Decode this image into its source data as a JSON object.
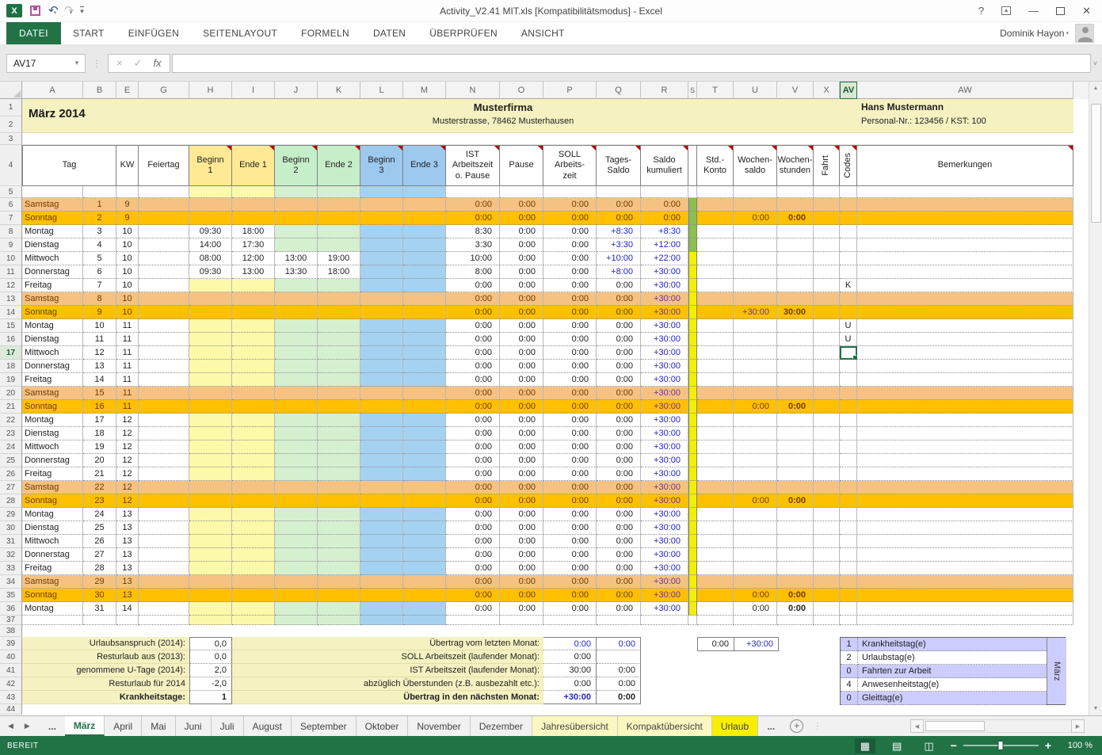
{
  "title_bar": {
    "title": "Activity_V2.41 MIT.xls  [Kompatibilitätsmodus] - Excel",
    "help": "?"
  },
  "ribbon": {
    "file_tab": "DATEI",
    "tabs": [
      "START",
      "EINFÜGEN",
      "SEITENLAYOUT",
      "FORMELN",
      "DATEN",
      "ÜBERPRÜFEN",
      "ANSICHT"
    ],
    "user_name": "Dominik Hayon"
  },
  "formula_bar": {
    "name_box": "AV17",
    "fx_label": "fx",
    "formula_value": ""
  },
  "columns": [
    "A",
    "B",
    "E",
    "G",
    "H",
    "I",
    "J",
    "K",
    "L",
    "M",
    "N",
    "O",
    "P",
    "Q",
    "R",
    "S",
    "T",
    "U",
    "V",
    "X",
    "AV",
    "AW"
  ],
  "selection": {
    "cell": "AV17",
    "column": "AV",
    "row": 17
  },
  "sheet": {
    "month_title": "März 2014",
    "company": "Musterfirma",
    "company_address": "Musterstrasse, 78462 Musterhausen",
    "employee_name": "Hans Mustermann",
    "employee_id": "Personal-Nr.: 123456 / KST: 100",
    "header": {
      "tag": "Tag",
      "kw": "KW",
      "feiertag": "Feiertag",
      "beginn1": "Beginn\n1",
      "ende1": "Ende 1",
      "beginn2": "Beginn\n2",
      "ende2": "Ende 2",
      "beginn3": "Beginn\n3",
      "ende3": "Ende 3",
      "ist": "IST\nArbeitszeit\no. Pause",
      "pause": "Pause",
      "soll": "SOLL\nArbeits-\nzeit",
      "tages": "Tages-\nSaldo",
      "saldo": "Saldo\nkumuliert",
      "std": "Std.-\nKonto",
      "wochensaldo": "Wochen-\nsaldo",
      "wochenstunden": "Wochen-\nstunden",
      "fahrt": "Fahrt",
      "codes": "Codes",
      "bemerkungen": "Bemerkungen"
    },
    "rows": [
      {
        "nr": 6,
        "tag": "Samstag",
        "d": "1",
        "kw": "9",
        "w": "sat",
        "n": "0:00",
        "o": "0:00",
        "p": "0:00",
        "q": "0:00",
        "r": "0:00"
      },
      {
        "nr": 7,
        "tag": "Sonntag",
        "d": "2",
        "kw": "9",
        "w": "sun",
        "n": "0:00",
        "o": "0:00",
        "p": "0:00",
        "q": "0:00",
        "r": "0:00",
        "u": "0:00",
        "v": "0:00"
      },
      {
        "nr": 8,
        "tag": "Montag",
        "d": "3",
        "kw": "10",
        "h": "09:30",
        "i": "18:00",
        "n": "8:30",
        "o": "0:00",
        "p": "0:00",
        "q": "+8:30",
        "r": "+8:30"
      },
      {
        "nr": 9,
        "tag": "Dienstag",
        "d": "4",
        "kw": "10",
        "h": "14:00",
        "i": "17:30",
        "n": "3:30",
        "o": "0:00",
        "p": "0:00",
        "q": "+3:30",
        "r": "+12:00"
      },
      {
        "nr": 10,
        "tag": "Mittwoch",
        "d": "5",
        "kw": "10",
        "h": "08:00",
        "i": "12:00",
        "j": "13:00",
        "k": "19:00",
        "n": "10:00",
        "o": "0:00",
        "p": "0:00",
        "q": "+10:00",
        "r": "+22:00"
      },
      {
        "nr": 11,
        "tag": "Donnerstag",
        "d": "6",
        "kw": "10",
        "h": "09:30",
        "i": "13:00",
        "j": "13:30",
        "k": "18:00",
        "n": "8:00",
        "o": "0:00",
        "p": "0:00",
        "q": "+8:00",
        "r": "+30:00"
      },
      {
        "nr": 12,
        "tag": "Freitag",
        "d": "7",
        "kw": "10",
        "n": "0:00",
        "o": "0:00",
        "p": "0:00",
        "q": "0:00",
        "r": "+30:00",
        "code": "K"
      },
      {
        "nr": 13,
        "tag": "Samstag",
        "d": "8",
        "kw": "10",
        "w": "sat",
        "n": "0:00",
        "o": "0:00",
        "p": "0:00",
        "q": "0:00",
        "r": "+30:00"
      },
      {
        "nr": 14,
        "tag": "Sonntag",
        "d": "9",
        "kw": "10",
        "w": "sun",
        "n": "0:00",
        "o": "0:00",
        "p": "0:00",
        "q": "0:00",
        "r": "+30:00",
        "u": "+30:00",
        "v": "30:00"
      },
      {
        "nr": 15,
        "tag": "Montag",
        "d": "10",
        "kw": "11",
        "n": "0:00",
        "o": "0:00",
        "p": "0:00",
        "q": "0:00",
        "r": "+30:00",
        "code": "U"
      },
      {
        "nr": 16,
        "tag": "Dienstag",
        "d": "11",
        "kw": "11",
        "n": "0:00",
        "o": "0:00",
        "p": "0:00",
        "q": "0:00",
        "r": "+30:00",
        "code": "U"
      },
      {
        "nr": 17,
        "tag": "Mittwoch",
        "d": "12",
        "kw": "11",
        "n": "0:00",
        "o": "0:00",
        "p": "0:00",
        "q": "0:00",
        "r": "+30:00"
      },
      {
        "nr": 18,
        "tag": "Donnerstag",
        "d": "13",
        "kw": "11",
        "n": "0:00",
        "o": "0:00",
        "p": "0:00",
        "q": "0:00",
        "r": "+30:00"
      },
      {
        "nr": 19,
        "tag": "Freitag",
        "d": "14",
        "kw": "11",
        "n": "0:00",
        "o": "0:00",
        "p": "0:00",
        "q": "0:00",
        "r": "+30:00"
      },
      {
        "nr": 20,
        "tag": "Samstag",
        "d": "15",
        "kw": "11",
        "w": "sat",
        "n": "0:00",
        "o": "0:00",
        "p": "0:00",
        "q": "0:00",
        "r": "+30:00"
      },
      {
        "nr": 21,
        "tag": "Sonntag",
        "d": "16",
        "kw": "11",
        "w": "sun",
        "n": "0:00",
        "o": "0:00",
        "p": "0:00",
        "q": "0:00",
        "r": "+30:00",
        "u": "0:00",
        "v": "0:00"
      },
      {
        "nr": 22,
        "tag": "Montag",
        "d": "17",
        "kw": "12",
        "n": "0:00",
        "o": "0:00",
        "p": "0:00",
        "q": "0:00",
        "r": "+30:00"
      },
      {
        "nr": 23,
        "tag": "Dienstag",
        "d": "18",
        "kw": "12",
        "n": "0:00",
        "o": "0:00",
        "p": "0:00",
        "q": "0:00",
        "r": "+30:00"
      },
      {
        "nr": 24,
        "tag": "Mittwoch",
        "d": "19",
        "kw": "12",
        "n": "0:00",
        "o": "0:00",
        "p": "0:00",
        "q": "0:00",
        "r": "+30:00"
      },
      {
        "nr": 25,
        "tag": "Donnerstag",
        "d": "20",
        "kw": "12",
        "n": "0:00",
        "o": "0:00",
        "p": "0:00",
        "q": "0:00",
        "r": "+30:00"
      },
      {
        "nr": 26,
        "tag": "Freitag",
        "d": "21",
        "kw": "12",
        "n": "0:00",
        "o": "0:00",
        "p": "0:00",
        "q": "0:00",
        "r": "+30:00"
      },
      {
        "nr": 27,
        "tag": "Samstag",
        "d": "22",
        "kw": "12",
        "w": "sat",
        "n": "0:00",
        "o": "0:00",
        "p": "0:00",
        "q": "0:00",
        "r": "+30:00"
      },
      {
        "nr": 28,
        "tag": "Sonntag",
        "d": "23",
        "kw": "12",
        "w": "sun",
        "n": "0:00",
        "o": "0:00",
        "p": "0:00",
        "q": "0:00",
        "r": "+30:00",
        "u": "0:00",
        "v": "0:00"
      },
      {
        "nr": 29,
        "tag": "Montag",
        "d": "24",
        "kw": "13",
        "n": "0:00",
        "o": "0:00",
        "p": "0:00",
        "q": "0:00",
        "r": "+30:00"
      },
      {
        "nr": 30,
        "tag": "Dienstag",
        "d": "25",
        "kw": "13",
        "n": "0:00",
        "o": "0:00",
        "p": "0:00",
        "q": "0:00",
        "r": "+30:00"
      },
      {
        "nr": 31,
        "tag": "Mittwoch",
        "d": "26",
        "kw": "13",
        "n": "0:00",
        "o": "0:00",
        "p": "0:00",
        "q": "0:00",
        "r": "+30:00"
      },
      {
        "nr": 32,
        "tag": "Donnerstag",
        "d": "27",
        "kw": "13",
        "n": "0:00",
        "o": "0:00",
        "p": "0:00",
        "q": "0:00",
        "r": "+30:00"
      },
      {
        "nr": 33,
        "tag": "Freitag",
        "d": "28",
        "kw": "13",
        "n": "0:00",
        "o": "0:00",
        "p": "0:00",
        "q": "0:00",
        "r": "+30:00"
      },
      {
        "nr": 34,
        "tag": "Samstag",
        "d": "29",
        "kw": "13",
        "w": "sat",
        "n": "0:00",
        "o": "0:00",
        "p": "0:00",
        "q": "0:00",
        "r": "+30:00"
      },
      {
        "nr": 35,
        "tag": "Sonntag",
        "d": "30",
        "kw": "13",
        "w": "sun",
        "n": "0:00",
        "o": "0:00",
        "p": "0:00",
        "q": "0:00",
        "r": "+30:00",
        "u": "0:00",
        "v": "0:00"
      },
      {
        "nr": 36,
        "tag": "Montag",
        "d": "31",
        "kw": "14",
        "n": "0:00",
        "o": "0:00",
        "p": "0:00",
        "q": "0:00",
        "r": "+30:00",
        "u": "0:00",
        "v": "0:00"
      }
    ]
  },
  "summary": {
    "left": [
      {
        "label": "Urlaubsanspruch (2014):",
        "value": "0,0"
      },
      {
        "label": "Resturlaub aus (2013):",
        "value": "0,0"
      },
      {
        "label": "genommene U-Tage (2014):",
        "value": "2,0"
      },
      {
        "label": "Resturlaub für 2014",
        "value": "-2,0"
      },
      {
        "label": "Krankheitstage:",
        "value": "1"
      }
    ],
    "mid": [
      {
        "label": "Übertrag vom letzten Monat:",
        "v1": "0:00",
        "v2": "0:00",
        "c1": "pos",
        "c2": "pos"
      },
      {
        "label": "SOLL Arbeitszeit (laufender Monat):",
        "v1": "0:00",
        "v2": ""
      },
      {
        "label": "IST Arbeitszeit (laufender Monat):",
        "v1": "30:00",
        "v2": "0:00"
      },
      {
        "label": "abzüglich Überstunden (z.B. ausbezahlt etc.):",
        "v1": "0:00",
        "v2": "0:00"
      },
      {
        "label": "Übertrag in den nächsten Monat:",
        "v1": "+30:00",
        "v2": "0:00",
        "bold": true,
        "c1": "pos"
      }
    ],
    "corner": {
      "v1": "0:00",
      "v2": "+30:00"
    },
    "stats": [
      {
        "count": "1",
        "label": "Krankheitstag(e)"
      },
      {
        "count": "2",
        "label": "Urlaubstag(e)"
      },
      {
        "count": "0",
        "label": "Fahrten zur Arbeit"
      },
      {
        "count": "4",
        "label": "Anwesenheitstag(e)"
      },
      {
        "count": "0",
        "label": "Gleittag(e)"
      }
    ],
    "month_side_label": "März"
  },
  "sheet_tabs": {
    "tabs": [
      {
        "label": "März",
        "style": "active"
      },
      {
        "label": "April"
      },
      {
        "label": "Mai"
      },
      {
        "label": "Juni"
      },
      {
        "label": "Juli"
      },
      {
        "label": "August"
      },
      {
        "label": "September"
      },
      {
        "label": "Oktober"
      },
      {
        "label": "November"
      },
      {
        "label": "Dezember"
      },
      {
        "label": "Jahresübersicht",
        "style": "pale"
      },
      {
        "label": "Kompaktübersicht",
        "style": "pale"
      },
      {
        "label": "Urlaub",
        "style": "yellow"
      }
    ],
    "overflow_indicator": "...",
    "add_sheet": "+"
  },
  "status_bar": {
    "mode": "BEREIT",
    "zoom_level": "100 %"
  },
  "colors": {
    "accent_green": "#217346",
    "saturday": "#f5c282",
    "sunday": "#ffc000",
    "band_yellow": "#f5f1c1",
    "lavender": "#ccccfe"
  }
}
